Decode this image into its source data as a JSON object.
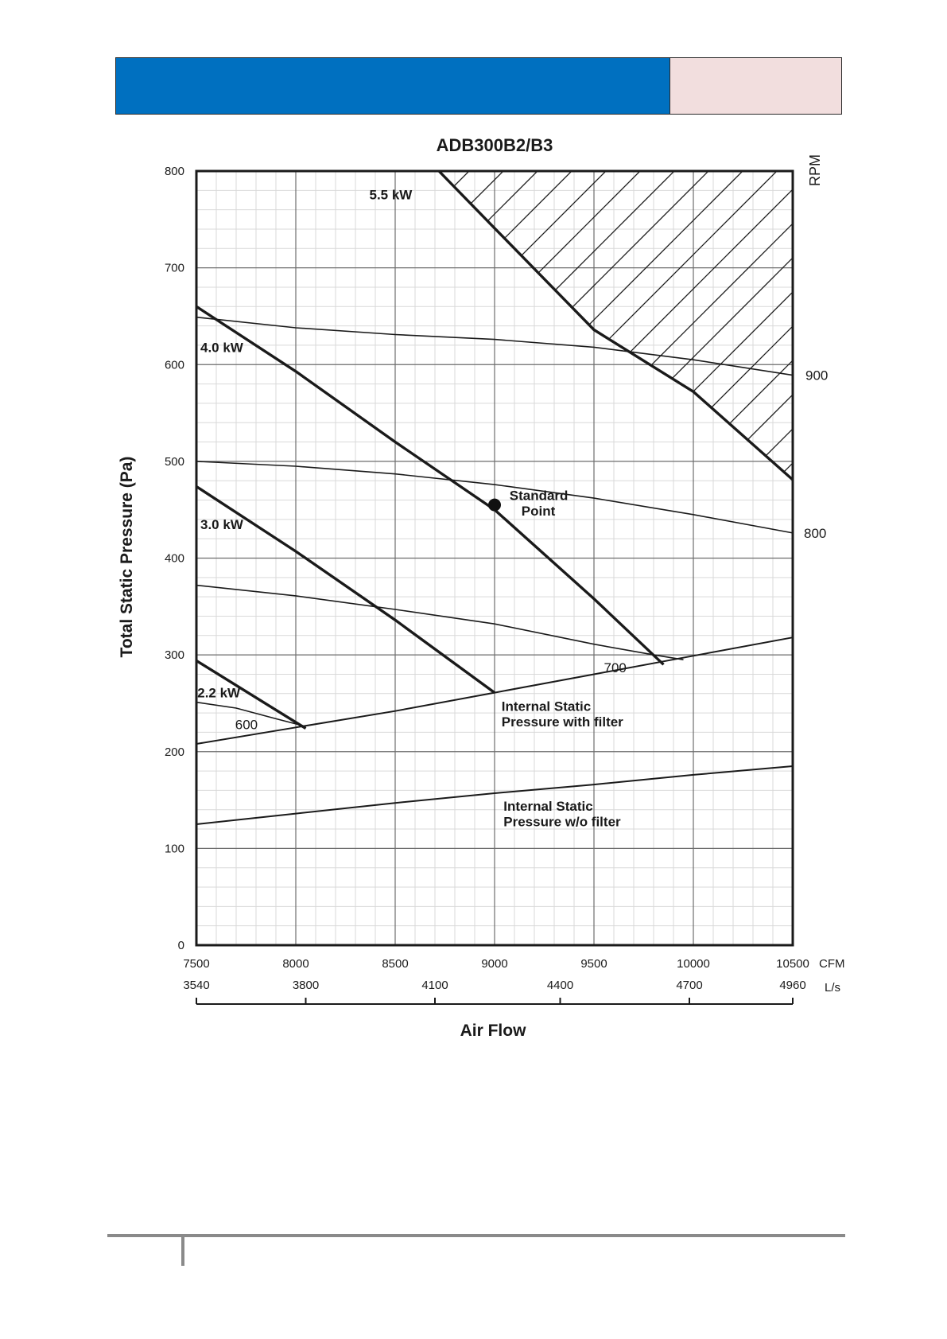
{
  "header": {
    "left_color": "#0070C0",
    "right_color": "#F2DEDE"
  },
  "chart_data": {
    "type": "line",
    "title": "ADB300B2/B3",
    "xlabel": "Air Flow",
    "ylabel": "Total Static Pressure (Pa)",
    "right_axis_label": "RPM",
    "x_unit": "CFM",
    "x2_unit": "L/s",
    "xlim": [
      7500,
      10500
    ],
    "ylim": [
      0,
      800
    ],
    "x_ticks": [
      7500,
      8000,
      8500,
      9000,
      9500,
      10000,
      10500
    ],
    "x_tick_labels": [
      "7500",
      "8000",
      "8500",
      "9000",
      "9500",
      "10000",
      "10500"
    ],
    "y_ticks": [
      0,
      100,
      200,
      300,
      400,
      500,
      600,
      700,
      800
    ],
    "y_tick_labels": [
      "0",
      "100",
      "200",
      "300",
      "400",
      "500",
      "600",
      "700",
      "800"
    ],
    "x2_ticks": [
      {
        "label": "3540",
        "cfm": 7500
      },
      {
        "label": "3800",
        "cfm": 8050
      },
      {
        "label": "4100",
        "cfm": 8700
      },
      {
        "label": "4400",
        "cfm": 9330
      },
      {
        "label": "4700",
        "cfm": 9980
      },
      {
        "label": "4960",
        "cfm": 10500
      }
    ],
    "grid": true,
    "rpm_curves": [
      {
        "label": "900",
        "points": [
          [
            7500,
            649
          ],
          [
            8000,
            638
          ],
          [
            8500,
            631
          ],
          [
            9000,
            626
          ],
          [
            9500,
            618
          ],
          [
            10000,
            605
          ],
          [
            10500,
            589
          ]
        ]
      },
      {
        "label": "800",
        "points": [
          [
            7500,
            500
          ],
          [
            8000,
            495
          ],
          [
            8500,
            487
          ],
          [
            9000,
            476
          ],
          [
            9500,
            462
          ],
          [
            10000,
            445
          ],
          [
            10500,
            426
          ]
        ]
      },
      {
        "label": "700",
        "points": [
          [
            7500,
            372
          ],
          [
            8000,
            361
          ],
          [
            8500,
            347
          ],
          [
            9000,
            332
          ],
          [
            9500,
            311
          ],
          [
            9800,
            300
          ],
          [
            9950,
            295
          ]
        ]
      },
      {
        "label": "600",
        "points": [
          [
            7500,
            251
          ],
          [
            7700,
            245
          ],
          [
            7900,
            234
          ],
          [
            8050,
            226
          ]
        ]
      }
    ],
    "power_curves": [
      {
        "label": "5.5 kW",
        "points": [
          [
            8720,
            800
          ],
          [
            9000,
            741
          ],
          [
            9500,
            636
          ],
          [
            10000,
            572
          ],
          [
            10500,
            481
          ]
        ]
      },
      {
        "label": "4.0 kW",
        "points": [
          [
            7500,
            660
          ],
          [
            8000,
            593
          ],
          [
            8500,
            520
          ],
          [
            9000,
            450
          ],
          [
            9500,
            358
          ],
          [
            9850,
            290
          ]
        ]
      },
      {
        "label": "3.0 kW",
        "points": [
          [
            7500,
            474
          ],
          [
            8000,
            407
          ],
          [
            8500,
            336
          ],
          [
            9000,
            261
          ]
        ]
      },
      {
        "label": "2.2 kW",
        "points": [
          [
            7500,
            294
          ],
          [
            8050,
            224
          ]
        ]
      }
    ],
    "internal_static": [
      {
        "label": "Internal Static Pressure with filter",
        "points": [
          [
            7500,
            208
          ],
          [
            8000,
            225
          ],
          [
            8500,
            242
          ],
          [
            9000,
            261
          ],
          [
            9500,
            280
          ],
          [
            10000,
            299
          ],
          [
            10500,
            318
          ]
        ]
      },
      {
        "label": "Internal Static Pressure w/o filter",
        "points": [
          [
            7500,
            125
          ],
          [
            8000,
            136
          ],
          [
            8500,
            147
          ],
          [
            9000,
            157
          ],
          [
            9500,
            166
          ],
          [
            10000,
            176
          ],
          [
            10500,
            185
          ]
        ]
      }
    ],
    "standard_point": {
      "label": "Standard Point",
      "x": 9000,
      "y": 455
    },
    "hatched_region": "above 5.5 kW curve",
    "annotations": {
      "isp_filter": [
        "Internal Static",
        "Pressure with filter"
      ],
      "isp_nofilter": [
        "Internal Static",
        "Pressure w/o filter"
      ],
      "standard_point": [
        "Standard",
        "Point"
      ]
    }
  }
}
